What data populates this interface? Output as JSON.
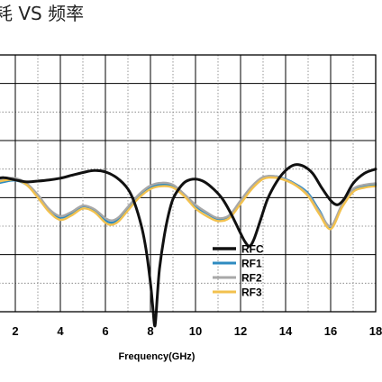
{
  "chart_data": {
    "type": "line",
    "title": "耗 VS 频率",
    "xlabel": "Frequency(GHz)",
    "ylabel": "",
    "xlim": [
      1,
      18
    ],
    "ylim": [
      0,
      9
    ],
    "x_ticks": [
      "2",
      "4",
      "6",
      "8",
      "10",
      "12",
      "14",
      "16",
      "18"
    ],
    "grid": true,
    "legend_position": "lower-right",
    "series": [
      {
        "name": "RFC",
        "color": "#111111",
        "x": [
          1,
          1.5,
          2,
          2.5,
          3,
          3.5,
          4,
          4.5,
          5,
          5.5,
          6,
          6.5,
          7,
          7.3,
          7.6,
          7.8,
          8.0,
          8.1,
          8.2,
          8.3,
          8.4,
          8.6,
          8.8,
          9.0,
          9.3,
          9.6,
          10.0,
          10.4,
          10.8,
          11.2,
          11.6,
          12.0,
          12.2,
          12.4,
          12.6,
          12.9,
          13.2,
          13.6,
          14.0,
          14.4,
          14.8,
          15.2,
          15.6,
          16.0,
          16.3,
          16.6,
          17.0,
          17.5,
          18
        ],
        "values": [
          4.65,
          4.7,
          4.62,
          4.55,
          4.58,
          4.62,
          4.68,
          4.78,
          4.88,
          4.95,
          4.9,
          4.7,
          4.3,
          3.8,
          3.0,
          2.2,
          1.0,
          0.2,
          -0.5,
          0.5,
          1.5,
          2.6,
          3.4,
          3.95,
          4.35,
          4.58,
          4.65,
          4.55,
          4.3,
          3.95,
          3.4,
          2.75,
          2.45,
          2.3,
          2.55,
          3.25,
          3.95,
          4.55,
          4.95,
          5.15,
          5.1,
          4.85,
          4.35,
          3.9,
          3.75,
          3.95,
          4.5,
          4.85,
          5.0
        ]
      },
      {
        "name": "RF1",
        "color": "#2e8bc0",
        "x": [
          1,
          1.5,
          2,
          2.5,
          3,
          3.5,
          4,
          4.5,
          5,
          5.5,
          6,
          6.3,
          6.6,
          7.0,
          7.5,
          8.0,
          8.5,
          9.0,
          9.5,
          10.0,
          10.5,
          11.0,
          11.5,
          12.0,
          12.5,
          13.0,
          13.5,
          14.0,
          14.5,
          15.0,
          15.5,
          16.0,
          16.5,
          17.0,
          17.5,
          18
        ],
        "values": [
          4.45,
          4.55,
          4.6,
          4.45,
          4.05,
          3.55,
          3.3,
          3.45,
          3.7,
          3.55,
          3.2,
          3.12,
          3.25,
          3.6,
          4.05,
          4.35,
          4.45,
          4.4,
          4.1,
          3.7,
          3.45,
          3.25,
          3.35,
          3.85,
          4.35,
          4.7,
          4.75,
          4.65,
          4.45,
          4.15,
          3.55,
          2.95,
          3.7,
          4.25,
          4.4,
          4.45
        ]
      },
      {
        "name": "RF2",
        "color": "#a8a8a8",
        "x": [
          1,
          1.5,
          2,
          2.5,
          3,
          3.5,
          4,
          4.5,
          5,
          5.5,
          6,
          6.3,
          6.6,
          7.0,
          7.5,
          8.0,
          8.5,
          9.0,
          9.5,
          10.0,
          10.5,
          11.0,
          11.5,
          12.0,
          12.5,
          13.0,
          13.5,
          14.0,
          14.5,
          15.0,
          15.5,
          16.0,
          16.5,
          17.0,
          17.5,
          18
        ],
        "values": [
          4.55,
          4.65,
          4.68,
          4.5,
          4.1,
          3.6,
          3.35,
          3.5,
          3.72,
          3.6,
          3.28,
          3.2,
          3.32,
          3.68,
          4.12,
          4.42,
          4.52,
          4.45,
          4.12,
          3.75,
          3.48,
          3.28,
          3.38,
          3.9,
          4.4,
          4.72,
          4.75,
          4.63,
          4.42,
          4.1,
          3.5,
          3.0,
          3.75,
          4.3,
          4.45,
          4.5
        ]
      },
      {
        "name": "RF3",
        "color": "#f2c14e",
        "x": [
          1,
          1.5,
          2,
          2.5,
          3,
          3.5,
          4,
          4.5,
          5,
          5.5,
          6,
          6.3,
          6.6,
          7.0,
          7.5,
          8.0,
          8.5,
          9.0,
          9.5,
          10.0,
          10.5,
          11.0,
          11.5,
          12.0,
          12.5,
          13.0,
          13.5,
          14.0,
          14.5,
          15.0,
          15.5,
          16.0,
          16.5,
          17.0,
          17.5,
          18
        ],
        "values": [
          4.5,
          4.6,
          4.62,
          4.45,
          4.0,
          3.5,
          3.22,
          3.38,
          3.62,
          3.5,
          3.12,
          3.05,
          3.18,
          3.55,
          4.0,
          4.3,
          4.4,
          4.35,
          4.05,
          3.62,
          3.35,
          3.18,
          3.28,
          3.78,
          4.3,
          4.65,
          4.7,
          4.6,
          4.4,
          4.05,
          3.42,
          2.9,
          3.65,
          4.2,
          4.35,
          4.4
        ]
      }
    ]
  }
}
